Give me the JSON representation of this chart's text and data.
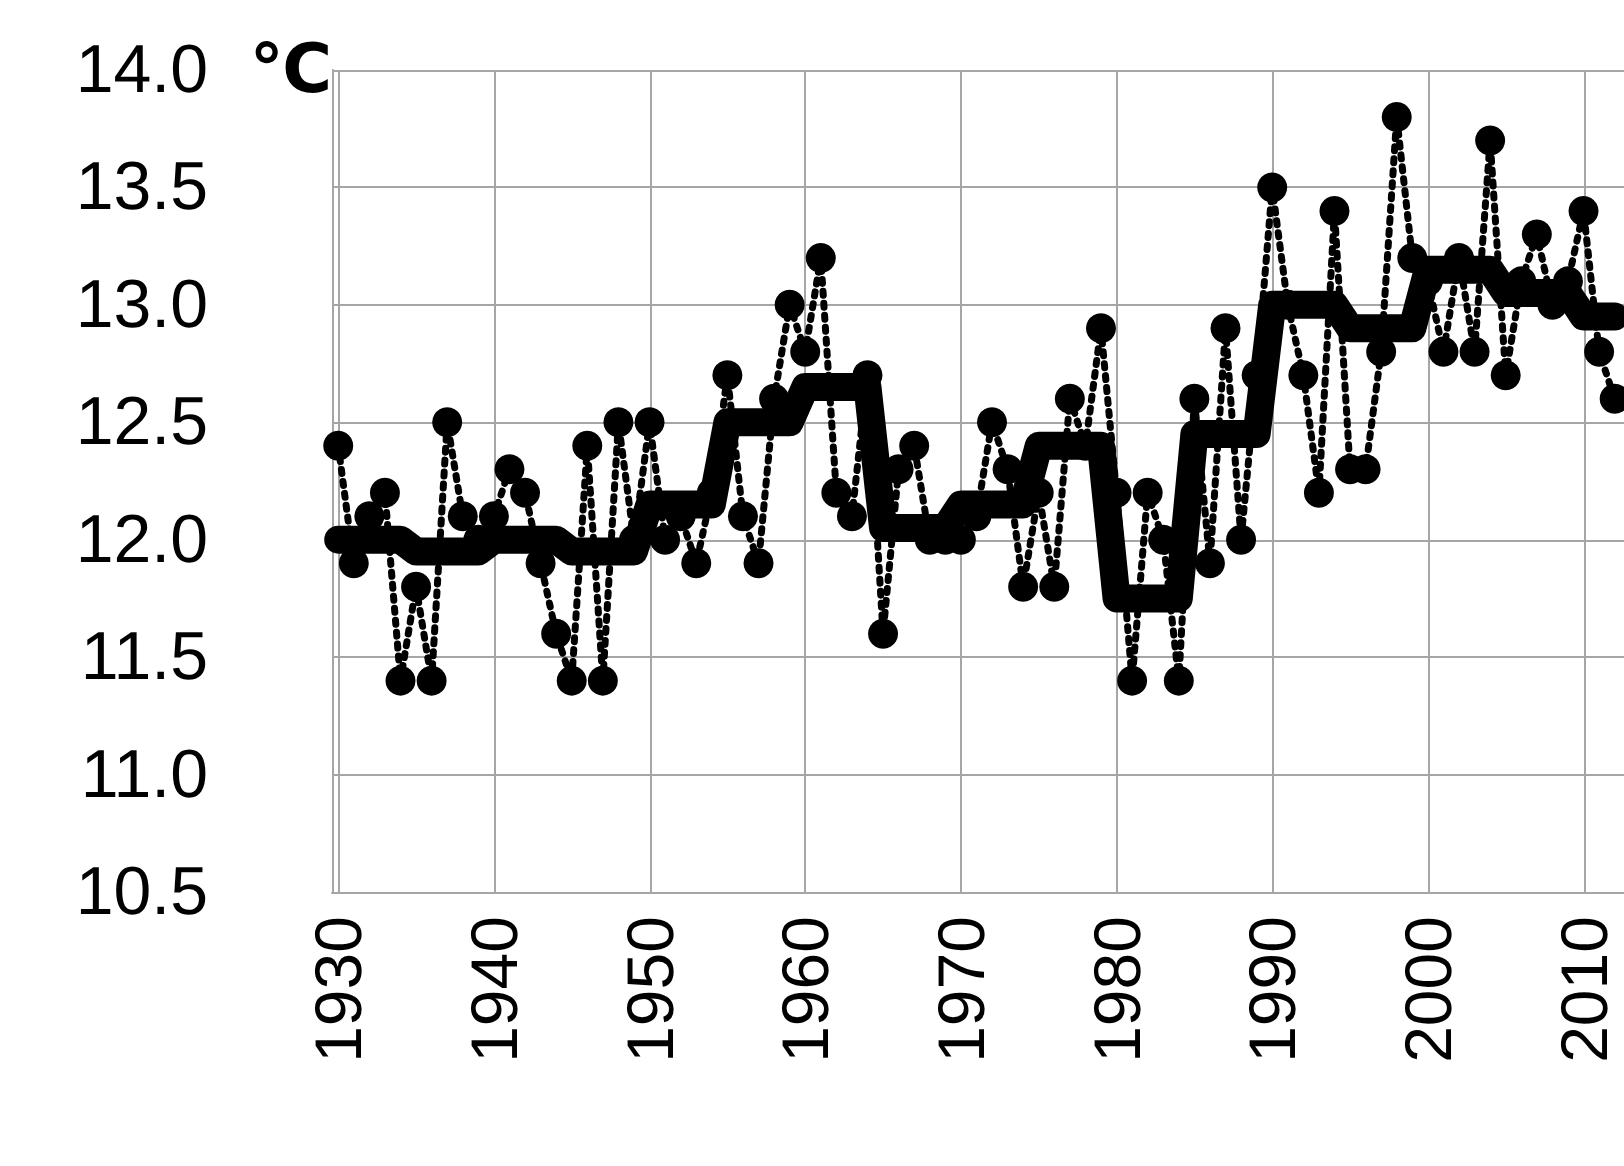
{
  "chart_data": {
    "type": "line",
    "ylabel": "℃",
    "x": [
      1930,
      1931,
      1932,
      1933,
      1934,
      1935,
      1936,
      1937,
      1938,
      1939,
      1940,
      1941,
      1942,
      1943,
      1944,
      1945,
      1946,
      1947,
      1948,
      1949,
      1950,
      1951,
      1952,
      1953,
      1954,
      1955,
      1956,
      1957,
      1958,
      1959,
      1960,
      1961,
      1962,
      1963,
      1964,
      1965,
      1966,
      1967,
      1968,
      1969,
      1970,
      1971,
      1972,
      1973,
      1974,
      1975,
      1976,
      1977,
      1978,
      1979,
      1980,
      1981,
      1982,
      1983,
      1984,
      1985,
      1986,
      1987,
      1988,
      1989,
      1990,
      1991,
      1992,
      1993,
      1994,
      1995,
      1996,
      1997,
      1998,
      1999,
      2000,
      2001,
      2002,
      2003,
      2004,
      2005,
      2006,
      2007,
      2008,
      2009,
      2010,
      2011,
      2012
    ],
    "series": [
      {
        "color": "#000000",
        "marker": "circle",
        "line_style": "dotted",
        "values": [
          12.4,
          11.9,
          12.1,
          12.2,
          11.4,
          11.8,
          11.4,
          12.5,
          12.1,
          12.0,
          12.1,
          12.3,
          12.2,
          11.9,
          11.6,
          11.4,
          12.4,
          11.4,
          12.5,
          12.0,
          12.5,
          12.0,
          12.1,
          11.9,
          12.2,
          12.7,
          12.1,
          11.9,
          12.6,
          13.0,
          12.8,
          13.2,
          12.2,
          12.1,
          12.7,
          11.6,
          12.3,
          12.4,
          12.0,
          12.0,
          12.0,
          12.1,
          12.5,
          12.3,
          11.8,
          12.2,
          11.8,
          12.6,
          12.4,
          12.9,
          12.2,
          11.4,
          12.2,
          12.0,
          11.4,
          12.6,
          11.9,
          12.9,
          12.0,
          12.7,
          13.5,
          13.0,
          12.7,
          12.2,
          13.4,
          12.3,
          12.3,
          12.8,
          13.8,
          13.2,
          13.1,
          12.8,
          13.2,
          12.8,
          13.7,
          12.7,
          13.1,
          13.3,
          13.0,
          13.1,
          13.4,
          12.8,
          12.6
        ]
      },
      {
        "color": "#000000",
        "marker": "none",
        "line_style": "solid",
        "values": [
          12.0,
          12.0,
          12.0,
          12.0,
          12.0,
          11.95,
          11.95,
          11.95,
          11.95,
          11.95,
          12.0,
          12.0,
          12.0,
          12.0,
          12.0,
          11.95,
          11.95,
          11.95,
          11.95,
          11.95,
          12.15,
          12.15,
          12.15,
          12.15,
          12.15,
          12.5,
          12.5,
          12.5,
          12.5,
          12.5,
          12.65,
          12.65,
          12.65,
          12.65,
          12.65,
          12.05,
          12.05,
          12.05,
          12.05,
          12.05,
          12.15,
          12.15,
          12.15,
          12.15,
          12.15,
          12.4,
          12.4,
          12.4,
          12.4,
          12.4,
          11.75,
          11.75,
          11.75,
          11.75,
          11.75,
          12.45,
          12.45,
          12.45,
          12.45,
          12.45,
          13.0,
          13.0,
          13.0,
          13.0,
          13.0,
          12.9,
          12.9,
          12.9,
          12.9,
          12.9,
          13.15,
          13.15,
          13.15,
          13.15,
          13.15,
          13.05,
          13.05,
          13.05,
          13.05,
          13.05,
          12.95,
          12.95,
          12.95
        ]
      }
    ],
    "xlim": [
      1929.6,
      2012.6
    ],
    "xticks": [
      1930,
      1940,
      1950,
      1960,
      1970,
      1980,
      1990,
      2000,
      2010
    ],
    "ylim": [
      10.5,
      14.0
    ],
    "yticks": [
      {
        "value": 10.5,
        "label": "10.5"
      },
      {
        "value": 11,
        "label": "11.0"
      },
      {
        "value": 11.5,
        "label": "11.5"
      },
      {
        "value": 12,
        "label": "12.0"
      },
      {
        "value": 12.5,
        "label": "12.5"
      },
      {
        "value": 13,
        "label": "13.0"
      },
      {
        "value": 13.5,
        "label": "13.5"
      },
      {
        "value": 14,
        "label": "14.0"
      }
    ],
    "grid": true
  }
}
